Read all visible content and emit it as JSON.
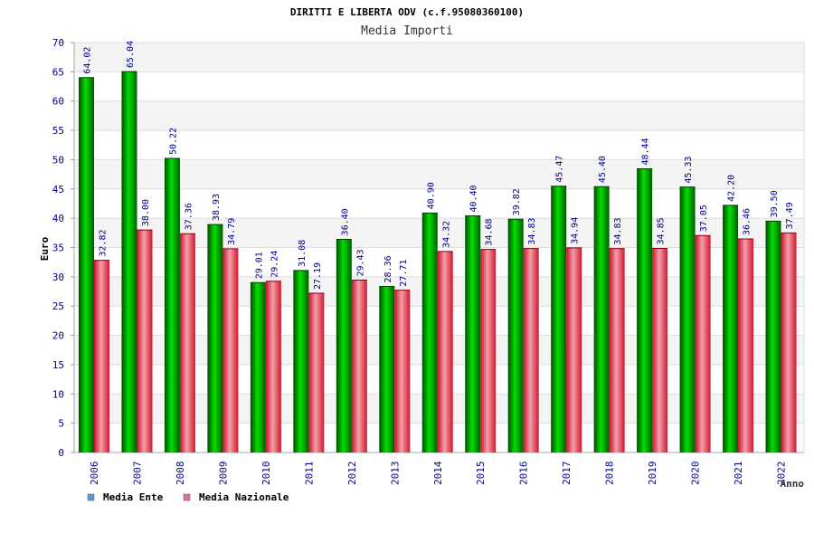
{
  "chart_data": {
    "type": "bar",
    "title": "DIRITTI E LIBERTA ODV (c.f.95080360100)",
    "subtitle": "Media Importi",
    "xlabel": "Anno",
    "ylabel": "Euro",
    "ylim": [
      0,
      70
    ],
    "yticks": [
      0,
      5,
      10,
      15,
      20,
      25,
      30,
      35,
      40,
      45,
      50,
      55,
      60,
      65,
      70
    ],
    "categories": [
      "2006",
      "2007",
      "2008",
      "2009",
      "2010",
      "2011",
      "2012",
      "2013",
      "2014",
      "2015",
      "2016",
      "2017",
      "2018",
      "2019",
      "2020",
      "2021",
      "2022"
    ],
    "series": [
      {
        "name": "Media Ente",
        "color": "#00b000",
        "legend_color": "#5b9bd5",
        "values": [
          64.02,
          65.04,
          50.22,
          38.93,
          29.01,
          31.08,
          36.4,
          28.36,
          40.9,
          40.4,
          39.82,
          45.47,
          45.4,
          48.44,
          45.33,
          42.2,
          39.5
        ]
      },
      {
        "name": "Media Nazionale",
        "color": "#e84050",
        "legend_color": "#e06fa0",
        "values": [
          32.82,
          38.0,
          37.36,
          34.79,
          29.24,
          27.19,
          29.43,
          27.71,
          34.32,
          34.68,
          34.83,
          34.94,
          34.83,
          34.85,
          37.05,
          36.46,
          37.49
        ]
      }
    ],
    "grid": true,
    "legend_position": "bottom-left"
  }
}
